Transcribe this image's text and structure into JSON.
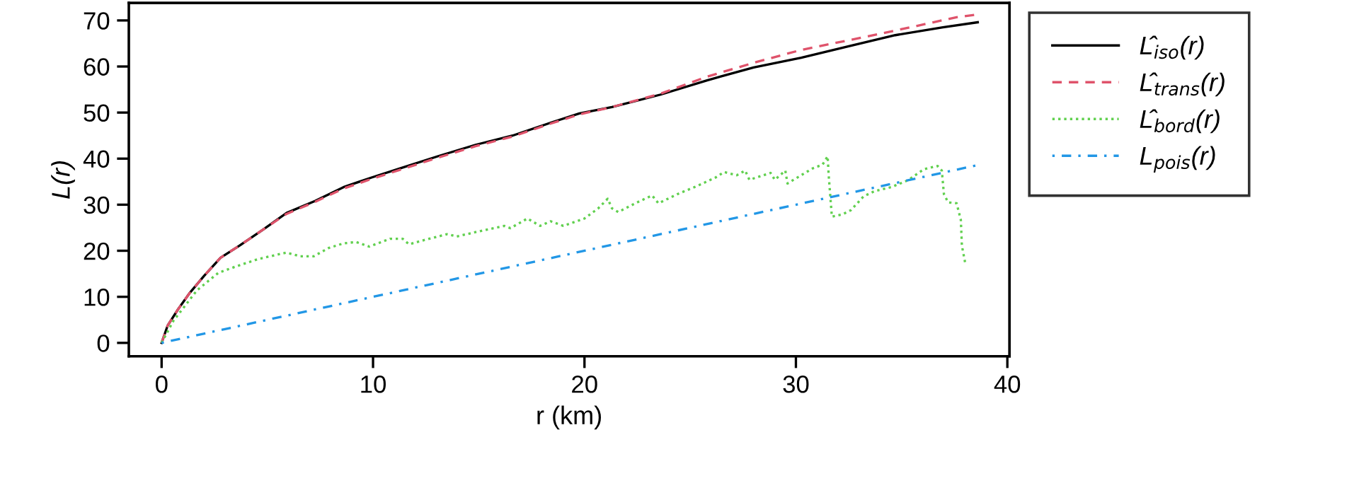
{
  "chart_data": {
    "type": "line",
    "xlabel": "r (km)",
    "ylabel": "L(r)",
    "xlim": [
      -1.55,
      40.1
    ],
    "ylim": [
      -2.9,
      73.8
    ],
    "xticks": [
      0,
      10,
      20,
      30,
      40
    ],
    "yticks": [
      0,
      10,
      20,
      30,
      40,
      50,
      60,
      70
    ],
    "grid": false,
    "legend": "right",
    "marker": "none",
    "series": [
      {
        "name": "L̂$_{iso}$(r)",
        "color": "#000000",
        "line_style": "solid",
        "x": [
          0,
          0.29,
          0.78,
          1.34,
          2.0,
          2.79,
          3.68,
          4.8,
          5.91,
          7.25,
          8.6,
          9.93,
          11.3,
          13.06,
          14.85,
          16.6,
          18.4,
          19.76,
          21.3,
          23.6,
          25.8,
          28.0,
          30.25,
          32.5,
          34.7,
          36.95,
          38.6
        ],
        "values": [
          0,
          3.8,
          7.3,
          10.9,
          14.5,
          18.5,
          21.1,
          24.6,
          28.2,
          30.8,
          33.8,
          35.9,
          37.9,
          40.5,
          43,
          45,
          47.8,
          49.8,
          51.2,
          53.9,
          57,
          59.8,
          61.9,
          64.4,
          66.8,
          68.5,
          69.6
        ]
      },
      {
        "name": "L̂$_{trans}$(r)",
        "color": "#df536b",
        "line_style": "dashed",
        "x": [
          0,
          0.29,
          0.78,
          1.34,
          2.0,
          2.79,
          3.68,
          4.8,
          5.91,
          7.25,
          8.6,
          9.93,
          11.3,
          13.06,
          14.85,
          16.6,
          18.4,
          19.76,
          21.3,
          23.6,
          25.8,
          28.0,
          30.25,
          32.5,
          34.7,
          37.6,
          38.6
        ],
        "values": [
          0,
          3.8,
          7.3,
          10.9,
          14.5,
          18.5,
          21.1,
          24.6,
          28.0,
          30.6,
          33.5,
          35.6,
          37.6,
          40.2,
          42.7,
          44.8,
          47.6,
          49.6,
          51.2,
          54.1,
          57.8,
          60.8,
          63.6,
          65.7,
          67.8,
          70.7,
          71.3
        ]
      },
      {
        "name": "L̂$_{bord}$(r)",
        "color": "#61d04f",
        "line_style": "dotted",
        "x": [
          0,
          0.56,
          1.67,
          2.68,
          3.46,
          4.57,
          5.9,
          6.56,
          7.2,
          7.9,
          8.6,
          9.2,
          9.82,
          10.8,
          11.4,
          11.7,
          12.4,
          13.5,
          13.96,
          15.1,
          16.2,
          16.5,
          17.3,
          17.9,
          18.4,
          19.0,
          20.0,
          20.65,
          21.1,
          21.3,
          21.6,
          22.4,
          23.2,
          23.5,
          24.4,
          25.3,
          26.2,
          26.6,
          27.2,
          27.6,
          27.8,
          28.8,
          29.0,
          29.5,
          29.6,
          30.25,
          30.8,
          31.26,
          31.5,
          31.55,
          31.66,
          31.7,
          32.2,
          32.6,
          33.2,
          33.7,
          34.5,
          35.3,
          36.05,
          36.7,
          36.9,
          37.0,
          37.2,
          37.6,
          37.8,
          37.85,
          38.0
        ],
        "values": [
          0,
          4.8,
          11.4,
          15.2,
          16.5,
          18.2,
          19.6,
          18.8,
          18.8,
          20.6,
          21.6,
          21.9,
          20.9,
          22.6,
          22.6,
          21.4,
          22.3,
          23.6,
          23.1,
          24.3,
          25.4,
          24.9,
          27,
          25.4,
          26.4,
          25.4,
          27,
          29.2,
          31.3,
          29.2,
          28.4,
          30.3,
          32,
          30.3,
          32.3,
          34,
          35.9,
          37.1,
          36.4,
          37.4,
          35.4,
          36.9,
          35.4,
          37.4,
          34.6,
          36.4,
          37.9,
          38.7,
          40.5,
          36.4,
          29.8,
          27.4,
          27.9,
          28.8,
          31.8,
          32.9,
          33.8,
          35.3,
          37.7,
          38.4,
          37.4,
          32.3,
          30.5,
          30.3,
          26.7,
          21.1,
          17.5
        ]
      },
      {
        "name": "L$_{pois}$(r)",
        "color": "#2297e6",
        "line_style": "dashdot",
        "x": [
          0,
          38.6
        ],
        "values": [
          0,
          38.6
        ]
      }
    ]
  }
}
